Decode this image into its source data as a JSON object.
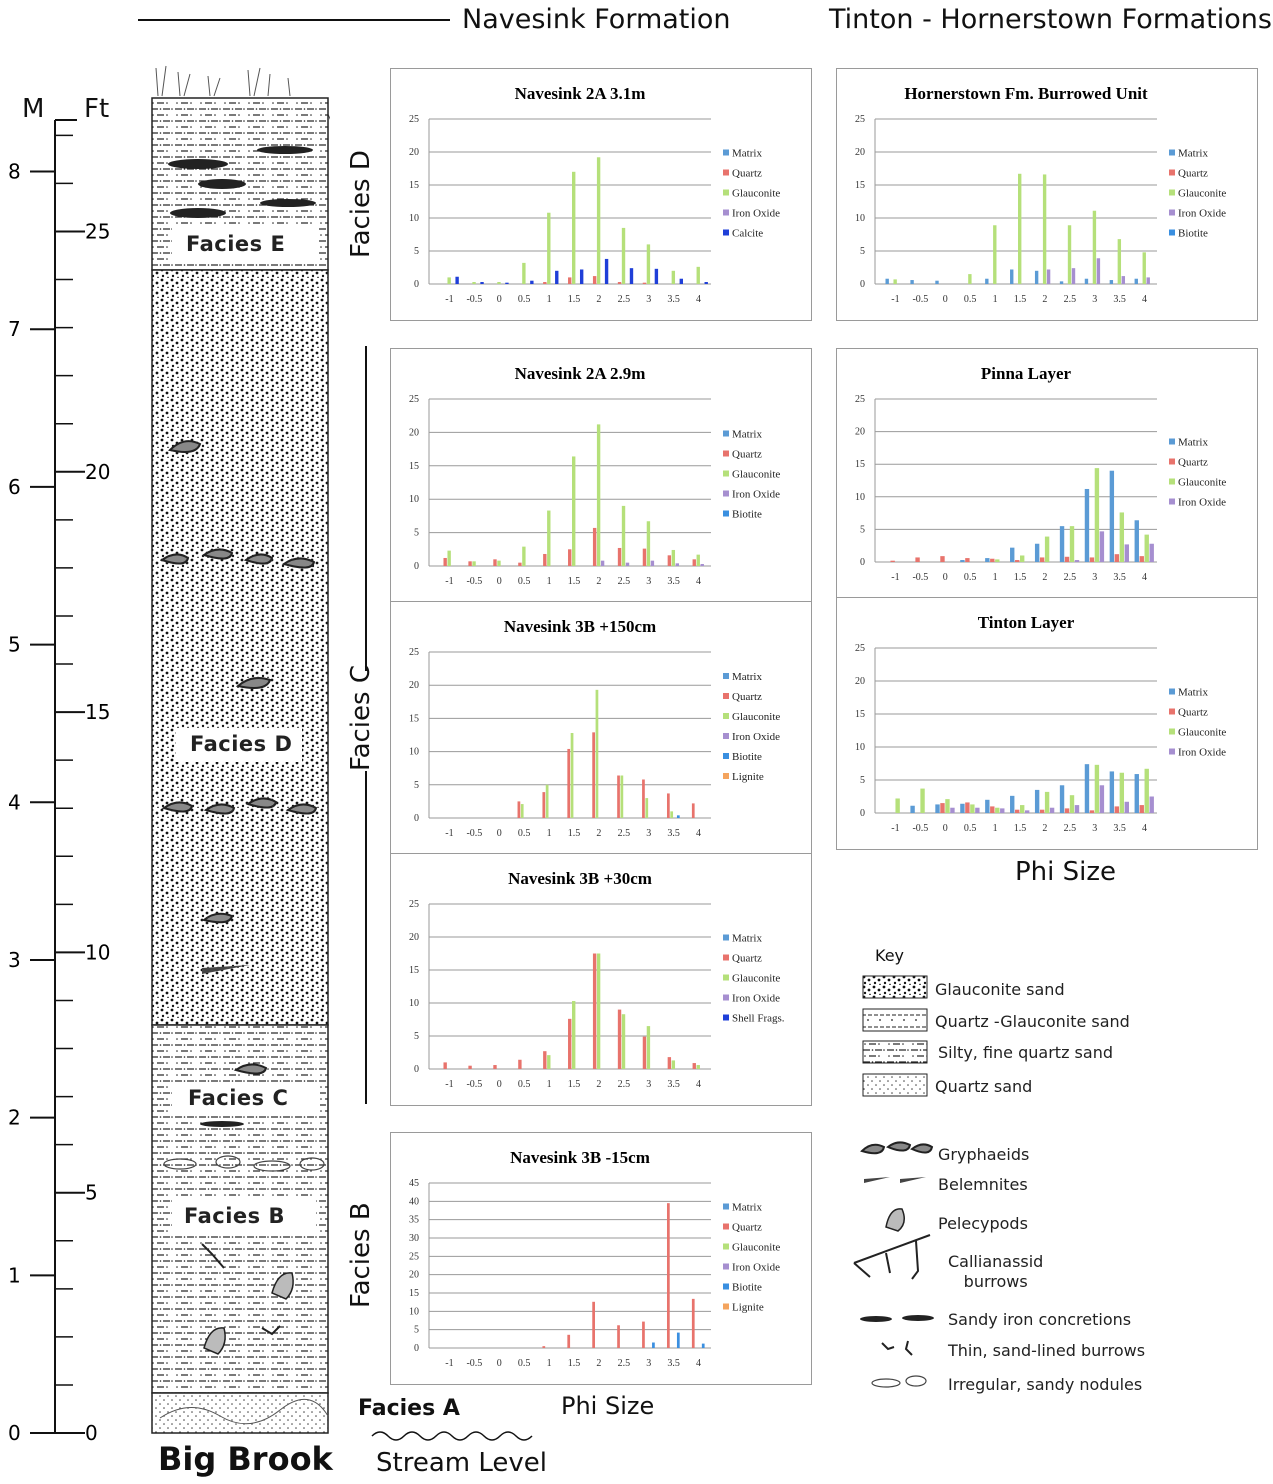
{
  "headers": {
    "navesink": "Navesink Formation",
    "tinton": "Tinton - Hornerstown Formations"
  },
  "scale": {
    "m_label": "M",
    "ft_label": "Ft",
    "m_ticks": [
      "0",
      "1",
      "2",
      "3",
      "4",
      "5",
      "6",
      "7",
      "8"
    ],
    "ft_ticks": [
      "0",
      "5",
      "10",
      "15",
      "20",
      "25"
    ]
  },
  "column": {
    "labels": [
      "Facies E",
      "Facies D",
      "Facies C",
      "Facies B"
    ],
    "bottom_label": "Big Brook"
  },
  "side_labels": {
    "facies_d": "Facies D",
    "facies_c": "Facies C",
    "facies_b": "Facies B",
    "facies_a": "Facies A",
    "stream_level": "Stream Level"
  },
  "phi_size_labels": {
    "left": "Phi Size",
    "right": "Phi Size"
  },
  "x_ticks": [
    "-1",
    "-0.5",
    "0",
    "0.5",
    "1",
    "1.5",
    "2",
    "2.5",
    "3",
    "3.5",
    "4"
  ],
  "colors": {
    "Matrix": "#5b9bd5",
    "Quartz": "#e8736c",
    "Glauconite": "#b5e07a",
    "Iron Oxide": "#a68fd0",
    "Calcite": "#1f3fd8",
    "Biotite": "#3a8fe0",
    "Lignite": "#f4a45e",
    "Shell Frags.": "#1f3fd8"
  },
  "key": {
    "title": "Key",
    "lithology": [
      "Glauconite sand",
      "Quartz -Glauconite sand",
      "Silty, fine quartz sand",
      "Quartz sand"
    ],
    "fossils": [
      "Gryphaeids",
      "Belemnites",
      "Pelecypods",
      "Callianassid\nburrows",
      "Sandy iron concretions",
      "Thin, sand-lined burrows",
      "Irregular, sandy nodules"
    ]
  },
  "chart_data": [
    {
      "id": "c1",
      "type": "bar",
      "title": "Navesink 2A 3.1m",
      "categories": [
        "-1",
        "-0.5",
        "0",
        "0.5",
        "1",
        "1.5",
        "2",
        "2.5",
        "3",
        "3.5",
        "4"
      ],
      "ylim": [
        0,
        25
      ],
      "yticks": [
        0,
        5,
        10,
        15,
        20,
        25
      ],
      "legend": "right",
      "series": [
        {
          "name": "Matrix",
          "values": [
            0,
            0,
            0,
            0,
            0,
            0,
            0,
            0,
            0,
            0,
            0
          ]
        },
        {
          "name": "Quartz",
          "values": [
            0,
            0,
            0,
            0,
            0.3,
            1,
            1.2,
            0.3,
            0.2,
            0,
            0
          ]
        },
        {
          "name": "Glauconite",
          "values": [
            1,
            0.3,
            0.3,
            3.2,
            10.8,
            17,
            19.2,
            8.5,
            6,
            2,
            2.6
          ]
        },
        {
          "name": "Iron Oxide",
          "values": [
            0,
            0,
            0,
            0,
            0,
            0,
            0,
            0,
            0,
            0,
            0
          ]
        },
        {
          "name": "Calcite",
          "values": [
            1.1,
            0.3,
            0.2,
            0.5,
            2,
            2.2,
            3.8,
            2.4,
            2.3,
            0.8,
            0.3
          ]
        }
      ]
    },
    {
      "id": "c2",
      "type": "bar",
      "title": "Navesink 2A 2.9m",
      "categories": [
        "-1",
        "-0.5",
        "0",
        "0.5",
        "1",
        "1.5",
        "2",
        "2.5",
        "3",
        "3.5",
        "4"
      ],
      "ylim": [
        0,
        25
      ],
      "yticks": [
        0,
        5,
        10,
        15,
        20,
        25
      ],
      "legend": "right",
      "series": [
        {
          "name": "Matrix",
          "values": [
            0,
            0,
            0,
            0,
            0,
            0,
            0,
            0,
            0,
            0,
            0
          ]
        },
        {
          "name": "Quartz",
          "values": [
            1.2,
            0.7,
            1,
            0.5,
            1.8,
            2.5,
            5.7,
            2.7,
            2.6,
            1.6,
            1
          ]
        },
        {
          "name": "Glauconite",
          "values": [
            2.3,
            0.7,
            0.8,
            2.9,
            8.3,
            16.4,
            21.2,
            9,
            6.7,
            2.4,
            1.7
          ]
        },
        {
          "name": "Iron Oxide",
          "values": [
            0,
            0,
            0,
            0,
            0,
            0,
            0.8,
            0.5,
            0.8,
            0.4,
            0.3
          ]
        },
        {
          "name": "Biotite",
          "values": [
            0,
            0,
            0,
            0,
            0,
            0,
            0,
            0,
            0,
            0,
            0
          ]
        }
      ]
    },
    {
      "id": "c3",
      "type": "bar",
      "title": "Navesink 3B +150cm",
      "categories": [
        "-1",
        "-0.5",
        "0",
        "0.5",
        "1",
        "1.5",
        "2",
        "2.5",
        "3",
        "3.5",
        "4"
      ],
      "ylim": [
        0,
        25
      ],
      "yticks": [
        0,
        5,
        10,
        15,
        20,
        25
      ],
      "legend": "right",
      "series": [
        {
          "name": "Matrix",
          "values": [
            0,
            0,
            0,
            0,
            0,
            0,
            0,
            0,
            0,
            0,
            0
          ]
        },
        {
          "name": "Quartz",
          "values": [
            0,
            0,
            0,
            2.5,
            3.9,
            10.4,
            12.9,
            6.4,
            5.8,
            3.7,
            2.2
          ]
        },
        {
          "name": "Glauconite",
          "values": [
            0,
            0,
            0,
            2.1,
            5,
            12.8,
            19.3,
            6.4,
            3,
            1,
            0
          ]
        },
        {
          "name": "Iron Oxide",
          "values": [
            0,
            0,
            0,
            0,
            0,
            0,
            0,
            0,
            0,
            0,
            0
          ]
        },
        {
          "name": "Biotite",
          "values": [
            0,
            0,
            0,
            0,
            0,
            0,
            0,
            0,
            0,
            0.4,
            0
          ]
        },
        {
          "name": "Lignite",
          "values": [
            0,
            0,
            0,
            0,
            0,
            0,
            0,
            0,
            0,
            0,
            0
          ]
        }
      ]
    },
    {
      "id": "c4",
      "type": "bar",
      "title": "Navesink 3B +30cm",
      "categories": [
        "-1",
        "-0.5",
        "0",
        "0.5",
        "1",
        "1.5",
        "2",
        "2.5",
        "3",
        "3.5",
        "4"
      ],
      "ylim": [
        0,
        25
      ],
      "yticks": [
        0,
        5,
        10,
        15,
        20,
        25
      ],
      "legend": "right",
      "series": [
        {
          "name": "Matrix",
          "values": [
            0,
            0,
            0,
            0,
            0,
            0,
            0,
            0,
            0,
            0,
            0
          ]
        },
        {
          "name": "Quartz",
          "values": [
            1,
            0.5,
            0.6,
            1.4,
            2.7,
            7.6,
            17.5,
            9,
            4.9,
            1.8,
            0.9
          ]
        },
        {
          "name": "Glauconite",
          "values": [
            0,
            0,
            0,
            0,
            2.1,
            10.3,
            17.5,
            8.3,
            6.5,
            1.3,
            0.6
          ]
        },
        {
          "name": "Iron Oxide",
          "values": [
            0,
            0,
            0,
            0,
            0,
            0,
            0,
            0,
            0,
            0,
            0
          ]
        },
        {
          "name": "Shell Frags.",
          "values": [
            0,
            0,
            0,
            0,
            0,
            0,
            0,
            0,
            0,
            0,
            0
          ]
        }
      ]
    },
    {
      "id": "c5",
      "type": "bar",
      "title": "Navesink 3B -15cm",
      "categories": [
        "-1",
        "-0.5",
        "0",
        "0.5",
        "1",
        "1.5",
        "2",
        "2.5",
        "3",
        "3.5",
        "4"
      ],
      "ylim": [
        0,
        45
      ],
      "yticks": [
        0,
        5,
        10,
        15,
        20,
        25,
        30,
        35,
        40,
        45
      ],
      "legend": "right",
      "series": [
        {
          "name": "Matrix",
          "values": [
            0,
            0,
            0,
            0,
            0,
            0,
            0,
            0,
            0,
            0,
            0
          ]
        },
        {
          "name": "Quartz",
          "values": [
            0,
            0,
            0,
            0,
            0.5,
            3.6,
            12.6,
            6.2,
            7.2,
            39.5,
            13.4
          ]
        },
        {
          "name": "Glauconite",
          "values": [
            0,
            0,
            0,
            0,
            0,
            0,
            0,
            0,
            0,
            0,
            0
          ]
        },
        {
          "name": "Iron Oxide",
          "values": [
            0,
            0,
            0,
            0,
            0,
            0,
            0,
            0,
            0,
            0,
            0
          ]
        },
        {
          "name": "Biotite",
          "values": [
            0,
            0,
            0,
            0,
            0,
            0,
            0,
            0,
            1.5,
            4.2,
            1.2
          ]
        },
        {
          "name": "Lignite",
          "values": [
            0,
            0,
            0,
            0,
            0,
            0,
            0,
            0,
            0,
            0,
            0
          ]
        }
      ]
    },
    {
      "id": "c6",
      "type": "bar",
      "title": "Hornerstown Fm. Burrowed Unit",
      "categories": [
        "-1",
        "-0.5",
        "0",
        "0.5",
        "1",
        "1.5",
        "2",
        "2.5",
        "3",
        "3.5",
        "4"
      ],
      "ylim": [
        0,
        25
      ],
      "yticks": [
        0,
        5,
        10,
        15,
        20,
        25
      ],
      "legend": "right",
      "series": [
        {
          "name": "Matrix",
          "values": [
            0.8,
            0.6,
            0.5,
            0,
            0.8,
            2.2,
            2,
            0.4,
            0.8,
            0.6,
            0.8
          ]
        },
        {
          "name": "Quartz",
          "values": [
            0,
            0,
            0,
            0,
            0,
            0,
            0,
            0,
            0,
            0,
            0
          ]
        },
        {
          "name": "Glauconite",
          "values": [
            0.7,
            0,
            0,
            1.5,
            8.9,
            16.7,
            16.6,
            8.9,
            11.1,
            6.8,
            4.8
          ]
        },
        {
          "name": "Iron Oxide",
          "values": [
            0,
            0,
            0,
            0,
            0,
            0,
            2.2,
            2.4,
            3.9,
            1.2,
            1
          ]
        },
        {
          "name": "Biotite",
          "values": [
            0,
            0,
            0,
            0,
            0,
            0,
            0,
            0,
            0,
            0,
            0
          ]
        }
      ]
    },
    {
      "id": "c7",
      "type": "bar",
      "title": "Pinna Layer",
      "categories": [
        "-1",
        "-0.5",
        "0",
        "0.5",
        "1",
        "1.5",
        "2",
        "2.5",
        "3",
        "3.5",
        "4"
      ],
      "ylim": [
        0,
        25
      ],
      "yticks": [
        0,
        5,
        10,
        15,
        20,
        25
      ],
      "legend": "right",
      "series": [
        {
          "name": "Matrix",
          "values": [
            0,
            0,
            0,
            0.3,
            0.6,
            2.2,
            2.8,
            5.5,
            11.2,
            14,
            6.4
          ]
        },
        {
          "name": "Quartz",
          "values": [
            0.2,
            0.7,
            0.9,
            0.6,
            0.5,
            0.3,
            0.7,
            0.8,
            0.7,
            1.2,
            0.9
          ]
        },
        {
          "name": "Glauconite",
          "values": [
            0,
            0,
            0,
            0,
            0.4,
            1,
            3.9,
            5.5,
            14.4,
            7.6,
            4.2
          ]
        },
        {
          "name": "Iron Oxide",
          "values": [
            0,
            0,
            0,
            0,
            0,
            0,
            0,
            0.3,
            4.7,
            2.7,
            2.8
          ]
        }
      ]
    },
    {
      "id": "c8",
      "type": "bar",
      "title": "Tinton Layer",
      "categories": [
        "-1",
        "-0.5",
        "0",
        "0.5",
        "1",
        "1.5",
        "2",
        "2.5",
        "3",
        "3.5",
        "4"
      ],
      "ylim": [
        0,
        25
      ],
      "yticks": [
        0,
        5,
        10,
        15,
        20,
        25
      ],
      "legend": "right",
      "series": [
        {
          "name": "Matrix",
          "values": [
            0,
            1.1,
            1.3,
            1.4,
            2,
            2.6,
            3.5,
            4.2,
            7.4,
            6.3,
            5.9
          ]
        },
        {
          "name": "Quartz",
          "values": [
            0,
            0,
            1.5,
            1.6,
            1,
            0.5,
            0.5,
            0.7,
            0.4,
            1,
            1.2
          ]
        },
        {
          "name": "Glauconite",
          "values": [
            2.2,
            3.7,
            2.1,
            1.3,
            0.8,
            1.2,
            3.2,
            2.7,
            7.3,
            6.1,
            6.7
          ]
        },
        {
          "name": "Iron Oxide",
          "values": [
            0,
            0,
            0.8,
            0.8,
            0.7,
            0.4,
            0.8,
            1.2,
            4.2,
            1.7,
            2.5
          ]
        }
      ]
    }
  ]
}
